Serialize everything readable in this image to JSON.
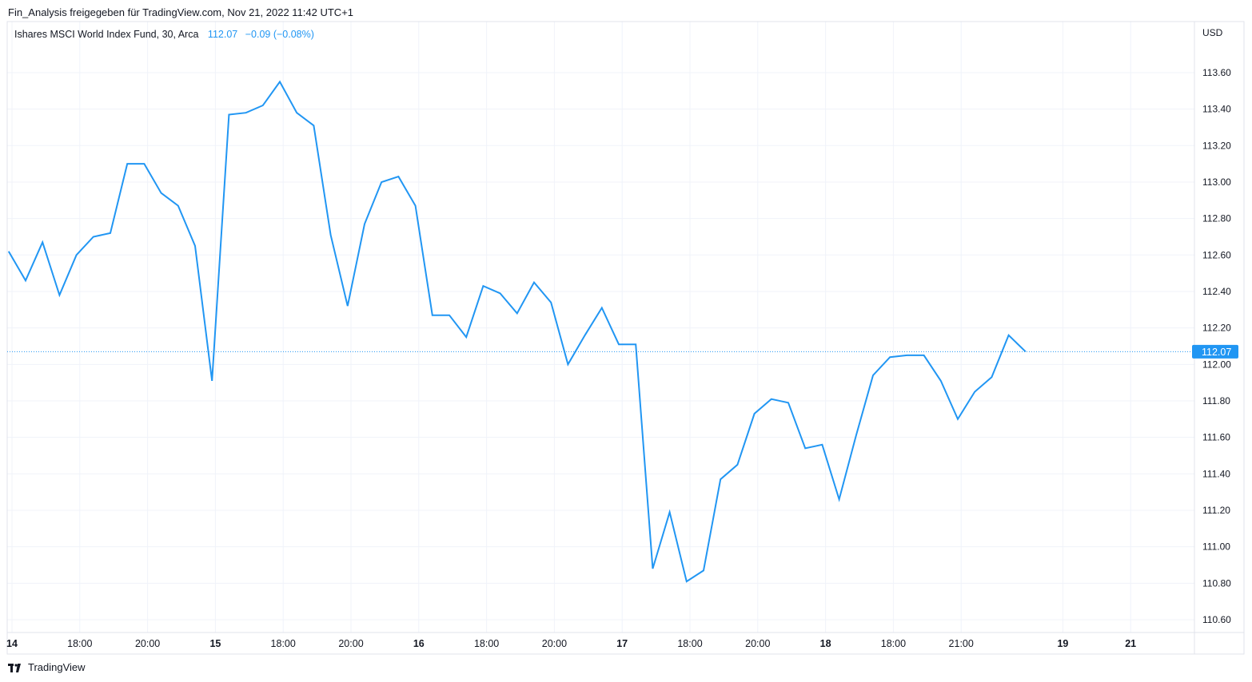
{
  "header": {
    "publisher_line": "Fin_Analysis freigegeben für TradingView.com, Nov 21, 2022 11:42 UTC+1"
  },
  "legend": {
    "symbol_line": "Ishares MSCI World Index Fund, 30, Arca",
    "last_value": "112.07",
    "change": "−0.09 (−0.08%)"
  },
  "footer": {
    "brand": "TradingView",
    "logo_icon": "tradingview-logo-icon"
  },
  "colors": {
    "line": "#2196f3",
    "grid": "#f0f3fa",
    "text": "#131722",
    "price_badge": "#2196f3"
  },
  "chart_data": {
    "type": "line",
    "title": "Ishares MSCI World Index Fund, 30, Arca",
    "currency_label": "USD",
    "ylim": [
      110.53,
      113.88
    ],
    "y_ticks": [
      110.6,
      110.8,
      111.0,
      111.2,
      111.4,
      111.6,
      111.8,
      112.0,
      112.2,
      112.4,
      112.6,
      112.8,
      113.0,
      113.2,
      113.4,
      113.6
    ],
    "y_tick_labels": [
      "110.60",
      "110.80",
      "111.00",
      "111.20",
      "111.40",
      "111.60",
      "111.80",
      "112.00",
      "112.20",
      "112.40",
      "112.60",
      "112.80",
      "113.00",
      "113.20",
      "113.40",
      "113.60"
    ],
    "x_ticks": [
      {
        "index": 0,
        "label": "14"
      },
      {
        "index": 4,
        "label": "18:00"
      },
      {
        "index": 8,
        "label": "20:00"
      },
      {
        "index": 12,
        "label": "15"
      },
      {
        "index": 16,
        "label": "18:00"
      },
      {
        "index": 20,
        "label": "20:00"
      },
      {
        "index": 24,
        "label": "16"
      },
      {
        "index": 28,
        "label": "18:00"
      },
      {
        "index": 32,
        "label": "20:00"
      },
      {
        "index": 36,
        "label": "17"
      },
      {
        "index": 40,
        "label": "18:00"
      },
      {
        "index": 44,
        "label": "20:00"
      },
      {
        "index": 48,
        "label": "18"
      },
      {
        "index": 52,
        "label": "18:00"
      },
      {
        "index": 56,
        "label": "21:00"
      },
      {
        "index": 62,
        "label": "19"
      },
      {
        "index": 66,
        "label": "21"
      }
    ],
    "last_price": 112.07,
    "last_price_label": "112.07",
    "series": [
      {
        "start_index": -0.2,
        "values": [
          112.62,
          112.46,
          112.67,
          112.38,
          112.6,
          112.7,
          112.72,
          113.1,
          113.1,
          112.94,
          112.87,
          112.65,
          111.91,
          113.37,
          113.38,
          113.42,
          113.55,
          113.38,
          113.31,
          112.71,
          112.32,
          112.77,
          113.0,
          113.03,
          112.87,
          112.27,
          112.27,
          112.15,
          112.43,
          112.39,
          112.28,
          112.45,
          112.34,
          112.0,
          112.16,
          112.31,
          112.11,
          112.11,
          110.88,
          111.19,
          110.81,
          110.87,
          111.37,
          111.45,
          111.73,
          111.81,
          111.79,
          111.54,
          111.56,
          111.26,
          111.61,
          111.94,
          112.04,
          112.05,
          112.05,
          111.91,
          111.7,
          111.85,
          111.93,
          112.16,
          112.07
        ]
      }
    ],
    "grid": true,
    "legend_position": "top-left"
  }
}
